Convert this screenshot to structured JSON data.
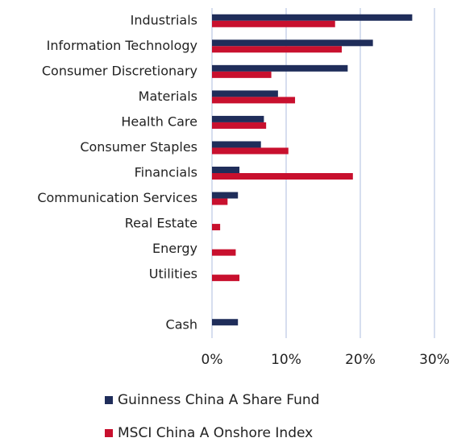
{
  "chart_data": {
    "type": "hbar",
    "categories": [
      "Industrials",
      "Information Technology",
      "Consumer Discretionary",
      "Materials",
      "Health Care",
      "Consumer Staples",
      "Financials",
      "Communication Services",
      "Real Estate",
      "Energy",
      "Utilities",
      null,
      "Cash"
    ],
    "series": [
      {
        "name": "Guinness China A Share Fund",
        "color": "#1f2d5a",
        "values": [
          27.0,
          21.7,
          18.3,
          8.9,
          7.0,
          6.6,
          3.7,
          3.5,
          0,
          0,
          0,
          null,
          3.5
        ]
      },
      {
        "name": "MSCI China A Onshore Index",
        "color": "#c8102e",
        "values": [
          16.6,
          17.5,
          8.0,
          11.2,
          7.3,
          10.3,
          19.0,
          2.1,
          1.1,
          3.2,
          3.7,
          null,
          0
        ]
      }
    ],
    "xlim": [
      0,
      30
    ],
    "xticks": [
      {
        "value": 0,
        "label": "0%"
      },
      {
        "value": 10,
        "label": "10%"
      },
      {
        "value": 20,
        "label": "20%"
      },
      {
        "value": 30,
        "label": "30%"
      }
    ],
    "grid": true,
    "legend": "bottom"
  }
}
